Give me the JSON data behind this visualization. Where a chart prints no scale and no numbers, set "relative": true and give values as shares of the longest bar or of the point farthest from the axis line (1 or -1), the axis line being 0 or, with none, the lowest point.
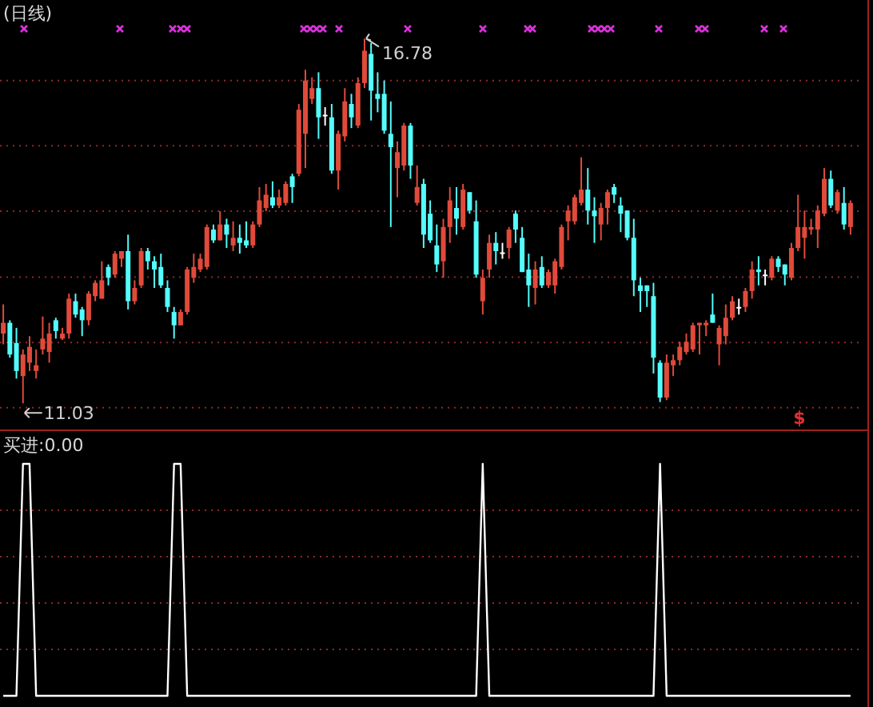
{
  "chart_data": [
    {
      "type": "candlestick",
      "title": "(日线)",
      "categories": [
        null,
        null,
        null,
        null,
        null,
        null,
        null,
        null,
        null,
        null,
        null,
        null,
        null,
        null,
        null,
        null,
        null,
        null,
        null,
        null,
        null,
        null,
        null,
        null,
        null,
        null,
        null,
        null,
        null,
        null,
        null,
        null,
        null,
        null,
        null,
        null,
        null,
        null,
        null,
        null,
        null,
        null,
        null,
        null,
        null,
        null,
        null,
        null,
        null,
        null,
        null,
        null,
        null,
        null,
        null,
        null,
        null,
        null,
        null,
        null,
        null,
        null,
        null,
        null,
        null,
        null,
        null,
        null,
        null,
        null,
        null,
        null,
        null,
        null,
        null,
        null,
        null,
        null,
        null,
        null,
        null,
        null,
        null,
        null,
        null,
        null,
        null,
        null,
        null,
        null,
        null,
        null,
        null,
        null,
        null,
        null,
        null,
        null,
        null,
        null,
        null,
        null,
        null,
        null,
        null,
        null,
        null,
        null,
        null,
        null,
        null,
        null,
        null,
        null,
        null,
        null,
        null,
        null,
        null,
        null,
        null,
        null,
        null,
        null,
        null,
        null,
        null,
        null,
        null,
        null
      ],
      "ohlc": [
        [
          12.13,
          12.59,
          11.96,
          12.3
        ],
        [
          12.3,
          12.34,
          11.75,
          11.8
        ],
        [
          11.98,
          12.22,
          11.42,
          11.54
        ],
        [
          11.46,
          11.88,
          11.03,
          11.8
        ],
        [
          11.67,
          12.09,
          11.54,
          11.92
        ],
        [
          11.54,
          11.88,
          11.42,
          11.63
        ],
        [
          11.88,
          12.4,
          11.8,
          12.05
        ],
        [
          11.84,
          12.3,
          11.67,
          12.13
        ],
        [
          12.34,
          12.38,
          12.05,
          12.17
        ],
        [
          12.05,
          12.22,
          12.03,
          12.13
        ],
        [
          12.13,
          12.76,
          12.05,
          12.68
        ],
        [
          12.64,
          12.76,
          12.38,
          12.43
        ],
        [
          12.51,
          12.55,
          12.09,
          12.34
        ],
        [
          12.34,
          12.8,
          12.26,
          12.76
        ],
        [
          12.72,
          12.97,
          12.64,
          12.93
        ],
        [
          12.68,
          13.27,
          12.68,
          12.97
        ],
        [
          13.18,
          13.22,
          12.89,
          13.01
        ],
        [
          13.06,
          13.43,
          13.01,
          13.39
        ],
        [
          13.31,
          13.43,
          13.18,
          13.43
        ],
        [
          13.43,
          13.69,
          12.51,
          12.64
        ],
        [
          12.64,
          12.97,
          12.59,
          12.85
        ],
        [
          12.89,
          13.48,
          12.85,
          13.43
        ],
        [
          13.43,
          13.48,
          13.14,
          13.27
        ],
        [
          13.27,
          13.35,
          12.85,
          13.14
        ],
        [
          13.18,
          13.39,
          12.85,
          12.89
        ],
        [
          12.85,
          12.97,
          12.47,
          12.55
        ],
        [
          12.47,
          12.55,
          12.05,
          12.26
        ],
        [
          12.26,
          12.51,
          12.26,
          12.47
        ],
        [
          12.47,
          13.18,
          12.43,
          13.14
        ],
        [
          13.01,
          13.39,
          12.93,
          13.18
        ],
        [
          13.14,
          13.39,
          13.1,
          13.31
        ],
        [
          13.18,
          13.85,
          13.14,
          13.81
        ],
        [
          13.77,
          13.85,
          13.56,
          13.6
        ],
        [
          13.6,
          14.06,
          13.6,
          13.85
        ],
        [
          13.85,
          13.94,
          13.48,
          13.69
        ],
        [
          13.52,
          13.9,
          13.43,
          13.64
        ],
        [
          13.64,
          13.85,
          13.39,
          13.56
        ],
        [
          13.6,
          13.9,
          13.48,
          13.52
        ],
        [
          13.52,
          13.9,
          13.48,
          13.85
        ],
        [
          13.85,
          14.44,
          13.81,
          14.23
        ],
        [
          14.11,
          14.49,
          14.06,
          14.32
        ],
        [
          14.28,
          14.53,
          14.11,
          14.15
        ],
        [
          14.15,
          14.4,
          14.11,
          14.28
        ],
        [
          14.19,
          14.53,
          14.15,
          14.49
        ],
        [
          14.61,
          14.65,
          14.19,
          14.44
        ],
        [
          14.65,
          15.75,
          14.61,
          15.66
        ],
        [
          15.28,
          16.29,
          14.74,
          16.12
        ],
        [
          15.83,
          16.17,
          15.75,
          16.0
        ],
        [
          16.0,
          16.25,
          15.2,
          15.54
        ],
        [
          15.58,
          15.7,
          15.41,
          15.58
        ],
        [
          15.54,
          15.75,
          14.65,
          14.7
        ],
        [
          14.7,
          15.33,
          14.4,
          15.28
        ],
        [
          15.24,
          16.0,
          15.16,
          15.79
        ],
        [
          15.75,
          15.91,
          15.37,
          15.54
        ],
        [
          15.41,
          16.17,
          15.37,
          16.08
        ],
        [
          16.08,
          16.78,
          16.0,
          16.59
        ],
        [
          16.54,
          16.71,
          15.49,
          15.96
        ],
        [
          15.91,
          16.25,
          15.62,
          15.83
        ],
        [
          15.91,
          16.12,
          15.28,
          15.33
        ],
        [
          15.28,
          15.79,
          13.81,
          15.07
        ],
        [
          14.74,
          15.16,
          14.28,
          14.99
        ],
        [
          14.78,
          15.45,
          14.7,
          15.41
        ],
        [
          15.41,
          15.45,
          14.57,
          14.78
        ],
        [
          14.19,
          14.78,
          14.15,
          14.44
        ],
        [
          14.49,
          14.57,
          13.48,
          13.69
        ],
        [
          14.02,
          14.23,
          13.56,
          13.6
        ],
        [
          13.52,
          13.85,
          13.1,
          13.22
        ],
        [
          13.27,
          13.94,
          13.01,
          13.81
        ],
        [
          13.81,
          14.44,
          13.56,
          14.23
        ],
        [
          14.11,
          14.44,
          13.69,
          13.94
        ],
        [
          13.81,
          14.49,
          13.77,
          14.4
        ],
        [
          14.36,
          14.36,
          14.02,
          14.07
        ],
        [
          13.9,
          14.23,
          13.01,
          13.06
        ],
        [
          12.64,
          13.14,
          12.43,
          13.01
        ],
        [
          13.14,
          13.69,
          13.01,
          13.56
        ],
        [
          13.56,
          13.73,
          13.22,
          13.43
        ],
        [
          13.41,
          13.56,
          13.31,
          13.41
        ],
        [
          13.48,
          13.81,
          13.31,
          13.77
        ],
        [
          14.02,
          14.07,
          13.56,
          13.77
        ],
        [
          13.64,
          13.81,
          13.1,
          13.1
        ],
        [
          13.14,
          13.39,
          12.55,
          12.89
        ],
        [
          12.85,
          13.27,
          12.59,
          13.14
        ],
        [
          13.18,
          13.35,
          12.85,
          12.89
        ],
        [
          12.89,
          13.14,
          12.85,
          13.1
        ],
        [
          12.89,
          13.31,
          12.76,
          13.27
        ],
        [
          13.18,
          13.85,
          13.14,
          13.81
        ],
        [
          13.9,
          14.15,
          13.6,
          14.07
        ],
        [
          13.9,
          14.32,
          13.85,
          14.28
        ],
        [
          14.19,
          14.91,
          14.15,
          14.4
        ],
        [
          14.4,
          14.74,
          13.85,
          14.07
        ],
        [
          14.07,
          14.28,
          13.56,
          13.98
        ],
        [
          13.85,
          14.19,
          13.6,
          14.11
        ],
        [
          14.11,
          14.4,
          13.85,
          14.36
        ],
        [
          14.44,
          14.49,
          14.19,
          14.32
        ],
        [
          14.15,
          14.28,
          13.73,
          14.02
        ],
        [
          14.07,
          14.07,
          13.6,
          13.64
        ],
        [
          13.64,
          13.94,
          12.72,
          12.97
        ],
        [
          12.89,
          13.01,
          12.47,
          12.8
        ],
        [
          12.89,
          12.89,
          12.55,
          12.8
        ],
        [
          12.72,
          12.93,
          11.5,
          11.75
        ],
        [
          11.67,
          11.71,
          11.05,
          11.12
        ],
        [
          11.12,
          11.8,
          11.08,
          11.67
        ],
        [
          11.63,
          11.8,
          11.46,
          11.71
        ],
        [
          11.71,
          12.0,
          11.63,
          11.92
        ],
        [
          11.84,
          12.13,
          11.8,
          12.0
        ],
        [
          11.88,
          12.3,
          11.84,
          12.26
        ],
        [
          12.26,
          12.3,
          11.8,
          12.3
        ],
        [
          12.26,
          12.34,
          12.09,
          12.3
        ],
        [
          12.43,
          12.76,
          12.3,
          12.3
        ],
        [
          11.96,
          12.26,
          11.63,
          12.22
        ],
        [
          12.09,
          12.59,
          11.96,
          12.38
        ],
        [
          12.38,
          12.72,
          12.34,
          12.64
        ],
        [
          12.55,
          12.68,
          12.43,
          12.55
        ],
        [
          12.55,
          12.85,
          12.47,
          12.8
        ],
        [
          12.8,
          13.27,
          12.68,
          13.14
        ],
        [
          13.14,
          13.35,
          12.89,
          13.1
        ],
        [
          13.06,
          13.14,
          12.89,
          13.06
        ],
        [
          13.01,
          13.35,
          12.97,
          13.31
        ],
        [
          13.31,
          13.35,
          13.1,
          13.18
        ],
        [
          13.22,
          13.22,
          12.89,
          13.06
        ],
        [
          13.01,
          13.56,
          12.97,
          13.48
        ],
        [
          13.48,
          14.32,
          13.43,
          13.81
        ],
        [
          13.64,
          14.07,
          13.31,
          13.81
        ],
        [
          13.77,
          13.94,
          13.69,
          13.81
        ],
        [
          13.77,
          14.15,
          13.48,
          14.07
        ],
        [
          14.02,
          14.74,
          13.98,
          14.57
        ],
        [
          14.57,
          14.7,
          14.11,
          14.15
        ],
        [
          14.07,
          14.4,
          14.02,
          14.36
        ],
        [
          14.19,
          14.44,
          13.77,
          13.85
        ],
        [
          13.81,
          14.23,
          13.69,
          14.19
        ]
      ],
      "colors": [
        "#e04a3a",
        "#54fcfc",
        "#54fcfc",
        "#e04a3a",
        "#e04a3a",
        "#e04a3a",
        "#e04a3a",
        "#e04a3a",
        "#54fcfc",
        "#e04a3a",
        "#e04a3a",
        "#54fcfc",
        "#54fcfc",
        "#e04a3a",
        "#e04a3a",
        "#e04a3a",
        "#54fcfc",
        "#e04a3a",
        "#e04a3a",
        "#54fcfc",
        "#e04a3a",
        "#e04a3a",
        "#54fcfc",
        "#54fcfc",
        "#54fcfc",
        "#54fcfc",
        "#54fcfc",
        "#e04a3a",
        "#e04a3a",
        "#e04a3a",
        "#e04a3a",
        "#e04a3a",
        "#54fcfc",
        "#e04a3a",
        "#54fcfc",
        "#e04a3a",
        "#54fcfc",
        "#54fcfc",
        "#e04a3a",
        "#e04a3a",
        "#e04a3a",
        "#54fcfc",
        "#e04a3a",
        "#e04a3a",
        "#54fcfc",
        "#e04a3a",
        "#e04a3a",
        "#e04a3a",
        "#54fcfc",
        "#ffffff",
        "#54fcfc",
        "#e04a3a",
        "#e04a3a",
        "#54fcfc",
        "#e04a3a",
        "#e04a3a",
        "#54fcfc",
        "#54fcfc",
        "#54fcfc",
        "#54fcfc",
        "#e04a3a",
        "#e04a3a",
        "#54fcfc",
        "#e04a3a",
        "#54fcfc",
        "#54fcfc",
        "#54fcfc",
        "#e04a3a",
        "#e04a3a",
        "#54fcfc",
        "#e04a3a",
        "#54fcfc",
        "#54fcfc",
        "#e04a3a",
        "#e04a3a",
        "#54fcfc",
        "#ffffff",
        "#e04a3a",
        "#54fcfc",
        "#54fcfc",
        "#54fcfc",
        "#e04a3a",
        "#54fcfc",
        "#e04a3a",
        "#e04a3a",
        "#e04a3a",
        "#e04a3a",
        "#e04a3a",
        "#e04a3a",
        "#54fcfc",
        "#54fcfc",
        "#e04a3a",
        "#e04a3a",
        "#54fcfc",
        "#54fcfc",
        "#54fcfc",
        "#54fcfc",
        "#54fcfc",
        "#54fcfc",
        "#54fcfc",
        "#54fcfc",
        "#e04a3a",
        "#e04a3a",
        "#e04a3a",
        "#e04a3a",
        "#e04a3a",
        "#e04a3a",
        "#e04a3a",
        "#54fcfc",
        "#e04a3a",
        "#e04a3a",
        "#e04a3a",
        "#ffffff",
        "#e04a3a",
        "#e04a3a",
        "#54fcfc",
        "#ffffff",
        "#e04a3a",
        "#54fcfc",
        "#54fcfc",
        "#e04a3a",
        "#e04a3a",
        "#e04a3a",
        "#e04a3a",
        "#e04a3a",
        "#e04a3a",
        "#54fcfc",
        "#e04a3a",
        "#54fcfc",
        "#e04a3a"
      ],
      "ylim": [
        10.63,
        17.39
      ],
      "yticks": [
        {
          "value": 16.12,
          "label": null
        },
        {
          "value": 15.09,
          "label": null
        },
        {
          "value": 14.06,
          "label": null
        },
        {
          "value": 13.02,
          "label": null
        },
        {
          "value": 11.99,
          "label": null
        },
        {
          "value": 10.96,
          "label": null
        }
      ],
      "grid": "y",
      "annotations": [
        "16.78",
        "11.03",
        "$"
      ]
    },
    {
      "type": "line",
      "title": "买进:0.00",
      "relative": true,
      "ref_lines": [
        {
          "axis": "y",
          "value": 0.2,
          "color": "#8b2a2a",
          "line_style": "dotted"
        },
        {
          "axis": "y",
          "value": 0.4,
          "color": "#8b2a2a",
          "line_style": "dotted"
        },
        {
          "axis": "y",
          "value": 0.6,
          "color": "#8b2a2a",
          "line_style": "dotted"
        },
        {
          "axis": "y",
          "value": 0.8,
          "color": "#8b2a2a",
          "line_style": "dotted"
        }
      ],
      "categories": [
        null,
        null,
        null,
        null,
        null,
        null,
        null,
        null,
        null,
        null,
        null,
        null,
        null,
        null,
        null,
        null,
        null,
        null,
        null,
        null,
        null,
        null,
        null,
        null,
        null,
        null,
        null,
        null,
        null,
        null,
        null,
        null,
        null,
        null,
        null,
        null,
        null,
        null,
        null,
        null,
        null,
        null,
        null,
        null,
        null,
        null,
        null,
        null,
        null,
        null,
        null,
        null,
        null,
        null,
        null,
        null,
        null,
        null,
        null,
        null,
        null,
        null,
        null,
        null,
        null,
        null,
        null,
        null,
        null,
        null,
        null,
        null,
        null,
        null,
        null,
        null,
        null,
        null,
        null,
        null,
        null,
        null,
        null,
        null,
        null,
        null,
        null,
        null,
        null,
        null,
        null,
        null,
        null,
        null,
        null,
        null,
        null,
        null,
        null,
        null,
        null,
        null,
        null,
        null,
        null,
        null,
        null,
        null,
        null,
        null,
        null,
        null,
        null,
        null,
        null,
        null,
        null,
        null,
        null,
        null,
        null,
        null,
        null,
        null,
        null,
        null,
        null,
        null,
        null,
        null
      ],
      "series": [
        {
          "color": "#ffffff",
          "values": [
            0,
            0,
            0,
            1,
            1,
            0,
            0,
            0,
            0,
            0,
            0,
            0,
            0,
            0,
            0,
            0,
            0,
            0,
            0,
            0,
            0,
            0,
            0,
            0,
            0,
            0,
            1,
            1,
            0,
            0,
            0,
            0,
            0,
            0,
            0,
            0,
            0,
            0,
            0,
            0,
            0,
            0,
            0,
            0,
            0,
            0,
            0,
            0,
            0,
            0,
            0,
            0,
            0,
            0,
            0,
            0,
            0,
            0,
            0,
            0,
            0,
            0,
            0,
            0,
            0,
            0,
            0,
            0,
            0,
            0,
            0,
            0,
            0,
            1,
            0,
            0,
            0,
            0,
            0,
            0,
            0,
            0,
            0,
            0,
            0,
            0,
            0,
            0,
            0,
            0,
            0,
            0,
            0,
            0,
            0,
            0,
            0,
            0,
            0,
            0,
            1,
            0,
            0,
            0,
            0,
            0,
            0,
            0,
            0,
            0,
            0,
            0,
            0,
            0,
            0,
            0,
            0,
            0,
            0,
            0,
            0,
            0,
            0,
            0,
            0,
            0,
            0,
            0,
            0,
            0
          ]
        }
      ]
    }
  ]
}
